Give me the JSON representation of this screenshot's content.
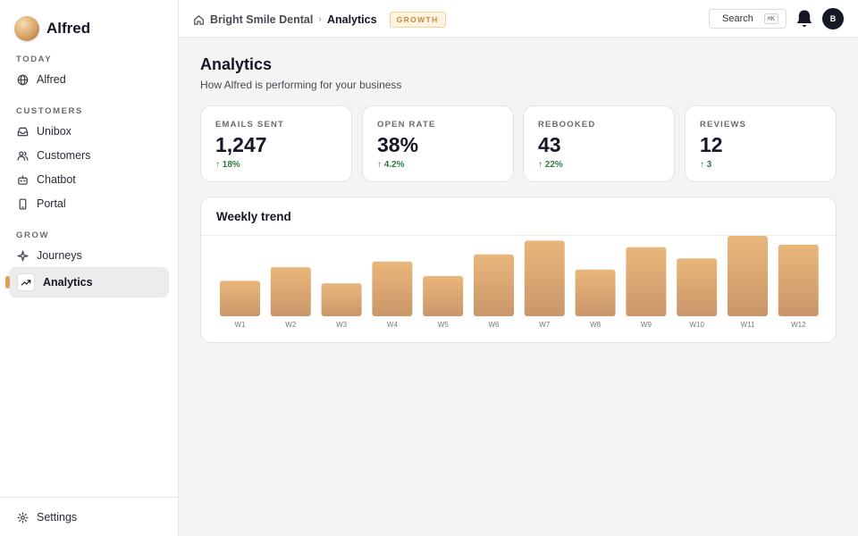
{
  "app": {
    "name": "Alfred"
  },
  "sidebar": {
    "sections": [
      {
        "label": "TODAY"
      },
      {
        "label": "CUSTOMERS"
      },
      {
        "label": "GROW"
      }
    ],
    "items": [
      {
        "label": "Alfred",
        "icon": "globe-icon"
      },
      {
        "label": "Unibox",
        "icon": "inbox-icon"
      },
      {
        "label": "Customers",
        "icon": "users-icon"
      },
      {
        "label": "Chatbot",
        "icon": "bot-icon"
      },
      {
        "label": "Portal",
        "icon": "phone-icon"
      },
      {
        "label": "Journeys",
        "icon": "sparkle-icon"
      },
      {
        "label": "Analytics",
        "icon": "trending-up-icon",
        "active": true
      }
    ],
    "footer": {
      "label": "Settings",
      "icon": "gear-icon"
    }
  },
  "topbar": {
    "breadcrumb": {
      "org": "Bright Smile Dental",
      "page": "Analytics"
    },
    "badge": "GROWTH",
    "search_label": "Search",
    "search_shortcut": "⌘K",
    "avatar_initial": "B"
  },
  "page": {
    "title": "Analytics",
    "subtitle": "How Alfred is performing for your business"
  },
  "stats": [
    {
      "label": "EMAILS SENT",
      "value": "1,247",
      "delta": "↑ 18%"
    },
    {
      "label": "OPEN RATE",
      "value": "38%",
      "delta": "↑ 4.2%"
    },
    {
      "label": "REBOOKED",
      "value": "43",
      "delta": "↑ 22%"
    },
    {
      "label": "REVIEWS",
      "value": "12",
      "delta": "↑ 3"
    }
  ],
  "colors": {
    "accent": "#e0a060",
    "delta_positive": "#2f7d43",
    "bar_top": "#e9b77a",
    "bar_bottom": "#c9966a"
  },
  "chart_data": {
    "type": "bar",
    "title": "Weekly trend",
    "categories": [
      "W1",
      "W2",
      "W3",
      "W4",
      "W5",
      "W6",
      "W7",
      "W8",
      "W9",
      "W10",
      "W11",
      "W12"
    ],
    "values": [
      44,
      61,
      41,
      68,
      50,
      77,
      94,
      58,
      86,
      72,
      100,
      89
    ],
    "ylim": [
      0,
      100
    ],
    "grid": false,
    "legend": "none"
  }
}
